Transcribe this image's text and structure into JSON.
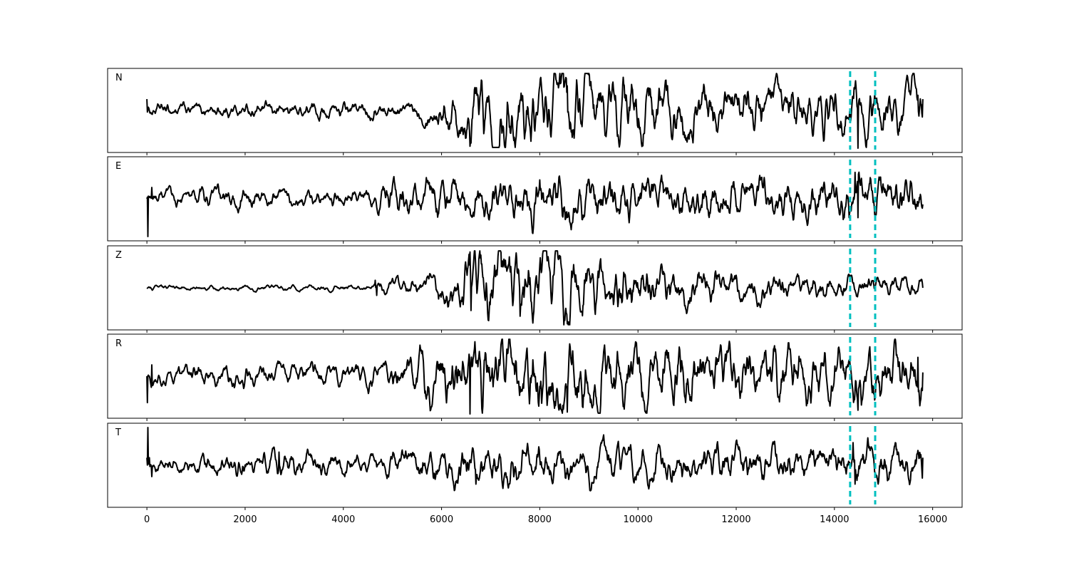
{
  "chart_data": {
    "type": "line",
    "x_range": [
      0,
      15800
    ],
    "xlim": [
      -800,
      16600
    ],
    "x_ticks": [
      0,
      2000,
      4000,
      6000,
      8000,
      10000,
      12000,
      14000,
      16000
    ],
    "x_tick_labels": [
      "0",
      "2000",
      "4000",
      "6000",
      "8000",
      "10000",
      "12000",
      "14000",
      "16000"
    ],
    "markers": [
      14320,
      14830
    ],
    "line_color": "#000000",
    "marker_color": "#00bfbf",
    "grid": false,
    "legend": "none",
    "panels": [
      {
        "label": "N",
        "ylim": [
          -1,
          1
        ],
        "envelope": [
          [
            0,
            0.12
          ],
          [
            5500,
            0.14
          ],
          [
            6400,
            0.4
          ],
          [
            6700,
            0.6
          ],
          [
            9000,
            0.6
          ],
          [
            12000,
            0.4
          ],
          [
            14000,
            0.4
          ],
          [
            15800,
            0.45
          ]
        ],
        "spikes": [
          [
            6580,
            -0.95
          ],
          [
            8560,
            0.65
          ],
          [
            14400,
            0.6
          ],
          [
            14480,
            -1.0
          ],
          [
            15700,
            0.4
          ]
        ],
        "start": 0.3,
        "end": 0.3
      },
      {
        "label": "E",
        "ylim": [
          -1,
          1
        ],
        "envelope": [
          [
            0,
            0.1
          ],
          [
            1800,
            0.22
          ],
          [
            3000,
            0.12
          ],
          [
            4500,
            0.15
          ],
          [
            5000,
            0.3
          ],
          [
            7500,
            0.4
          ],
          [
            8500,
            0.45
          ],
          [
            10000,
            0.35
          ],
          [
            14000,
            0.35
          ],
          [
            15800,
            0.4
          ]
        ],
        "spikes": [
          [
            0,
            0.0
          ],
          [
            15,
            -1.0
          ],
          [
            100,
            0.3
          ],
          [
            8000,
            0.5
          ],
          [
            14300,
            -0.5
          ],
          [
            14420,
            0.7
          ],
          [
            14480,
            -0.5
          ]
        ],
        "start": 0.0,
        "end": -0.15
      },
      {
        "label": "Z",
        "ylim": [
          -1,
          1
        ],
        "envelope": [
          [
            0,
            0.04
          ],
          [
            4600,
            0.05
          ],
          [
            4700,
            0.12
          ],
          [
            5500,
            0.15
          ],
          [
            6300,
            0.35
          ],
          [
            6600,
            0.6
          ],
          [
            8000,
            0.65
          ],
          [
            8600,
            0.6
          ],
          [
            10000,
            0.4
          ],
          [
            11000,
            0.3
          ],
          [
            12000,
            0.25
          ],
          [
            15800,
            0.15
          ]
        ],
        "spikes": [
          [
            6580,
            0.95
          ],
          [
            6600,
            -0.6
          ],
          [
            8560,
            -0.95
          ],
          [
            7600,
            -0.75
          ],
          [
            4650,
            0.2
          ],
          [
            4680,
            -0.2
          ]
        ],
        "start": 0.0,
        "end": 0.0
      },
      {
        "label": "R",
        "ylim": [
          -1,
          1
        ],
        "envelope": [
          [
            0,
            0.15
          ],
          [
            1500,
            0.18
          ],
          [
            4500,
            0.2
          ],
          [
            5500,
            0.4
          ],
          [
            6600,
            0.65
          ],
          [
            8000,
            0.7
          ],
          [
            9500,
            0.55
          ],
          [
            12000,
            0.45
          ],
          [
            15800,
            0.5
          ]
        ],
        "spikes": [
          [
            0,
            -0.15
          ],
          [
            10,
            -0.7
          ],
          [
            100,
            0.3
          ],
          [
            6580,
            -1.0
          ],
          [
            8560,
            -0.95
          ],
          [
            14480,
            -0.9
          ],
          [
            15700,
            0.5
          ]
        ],
        "start": 0.0,
        "end": 0.1
      },
      {
        "label": "T",
        "ylim": [
          -1,
          1
        ],
        "envelope": [
          [
            0,
            0.1
          ],
          [
            300,
            0.12
          ],
          [
            1800,
            0.2
          ],
          [
            3000,
            0.25
          ],
          [
            4500,
            0.15
          ],
          [
            5500,
            0.3
          ],
          [
            7000,
            0.35
          ],
          [
            10000,
            0.3
          ],
          [
            14000,
            0.3
          ],
          [
            15800,
            0.35
          ]
        ],
        "spikes": [
          [
            0,
            0.2
          ],
          [
            15,
            1.0
          ],
          [
            50,
            0.2
          ],
          [
            100,
            -0.3
          ],
          [
            2690,
            0.35
          ],
          [
            6700,
            -0.5
          ],
          [
            14380,
            0.6
          ],
          [
            14420,
            -0.5
          ],
          [
            14460,
            -0.4
          ]
        ],
        "start": 0.2,
        "end": 0.2
      }
    ]
  }
}
